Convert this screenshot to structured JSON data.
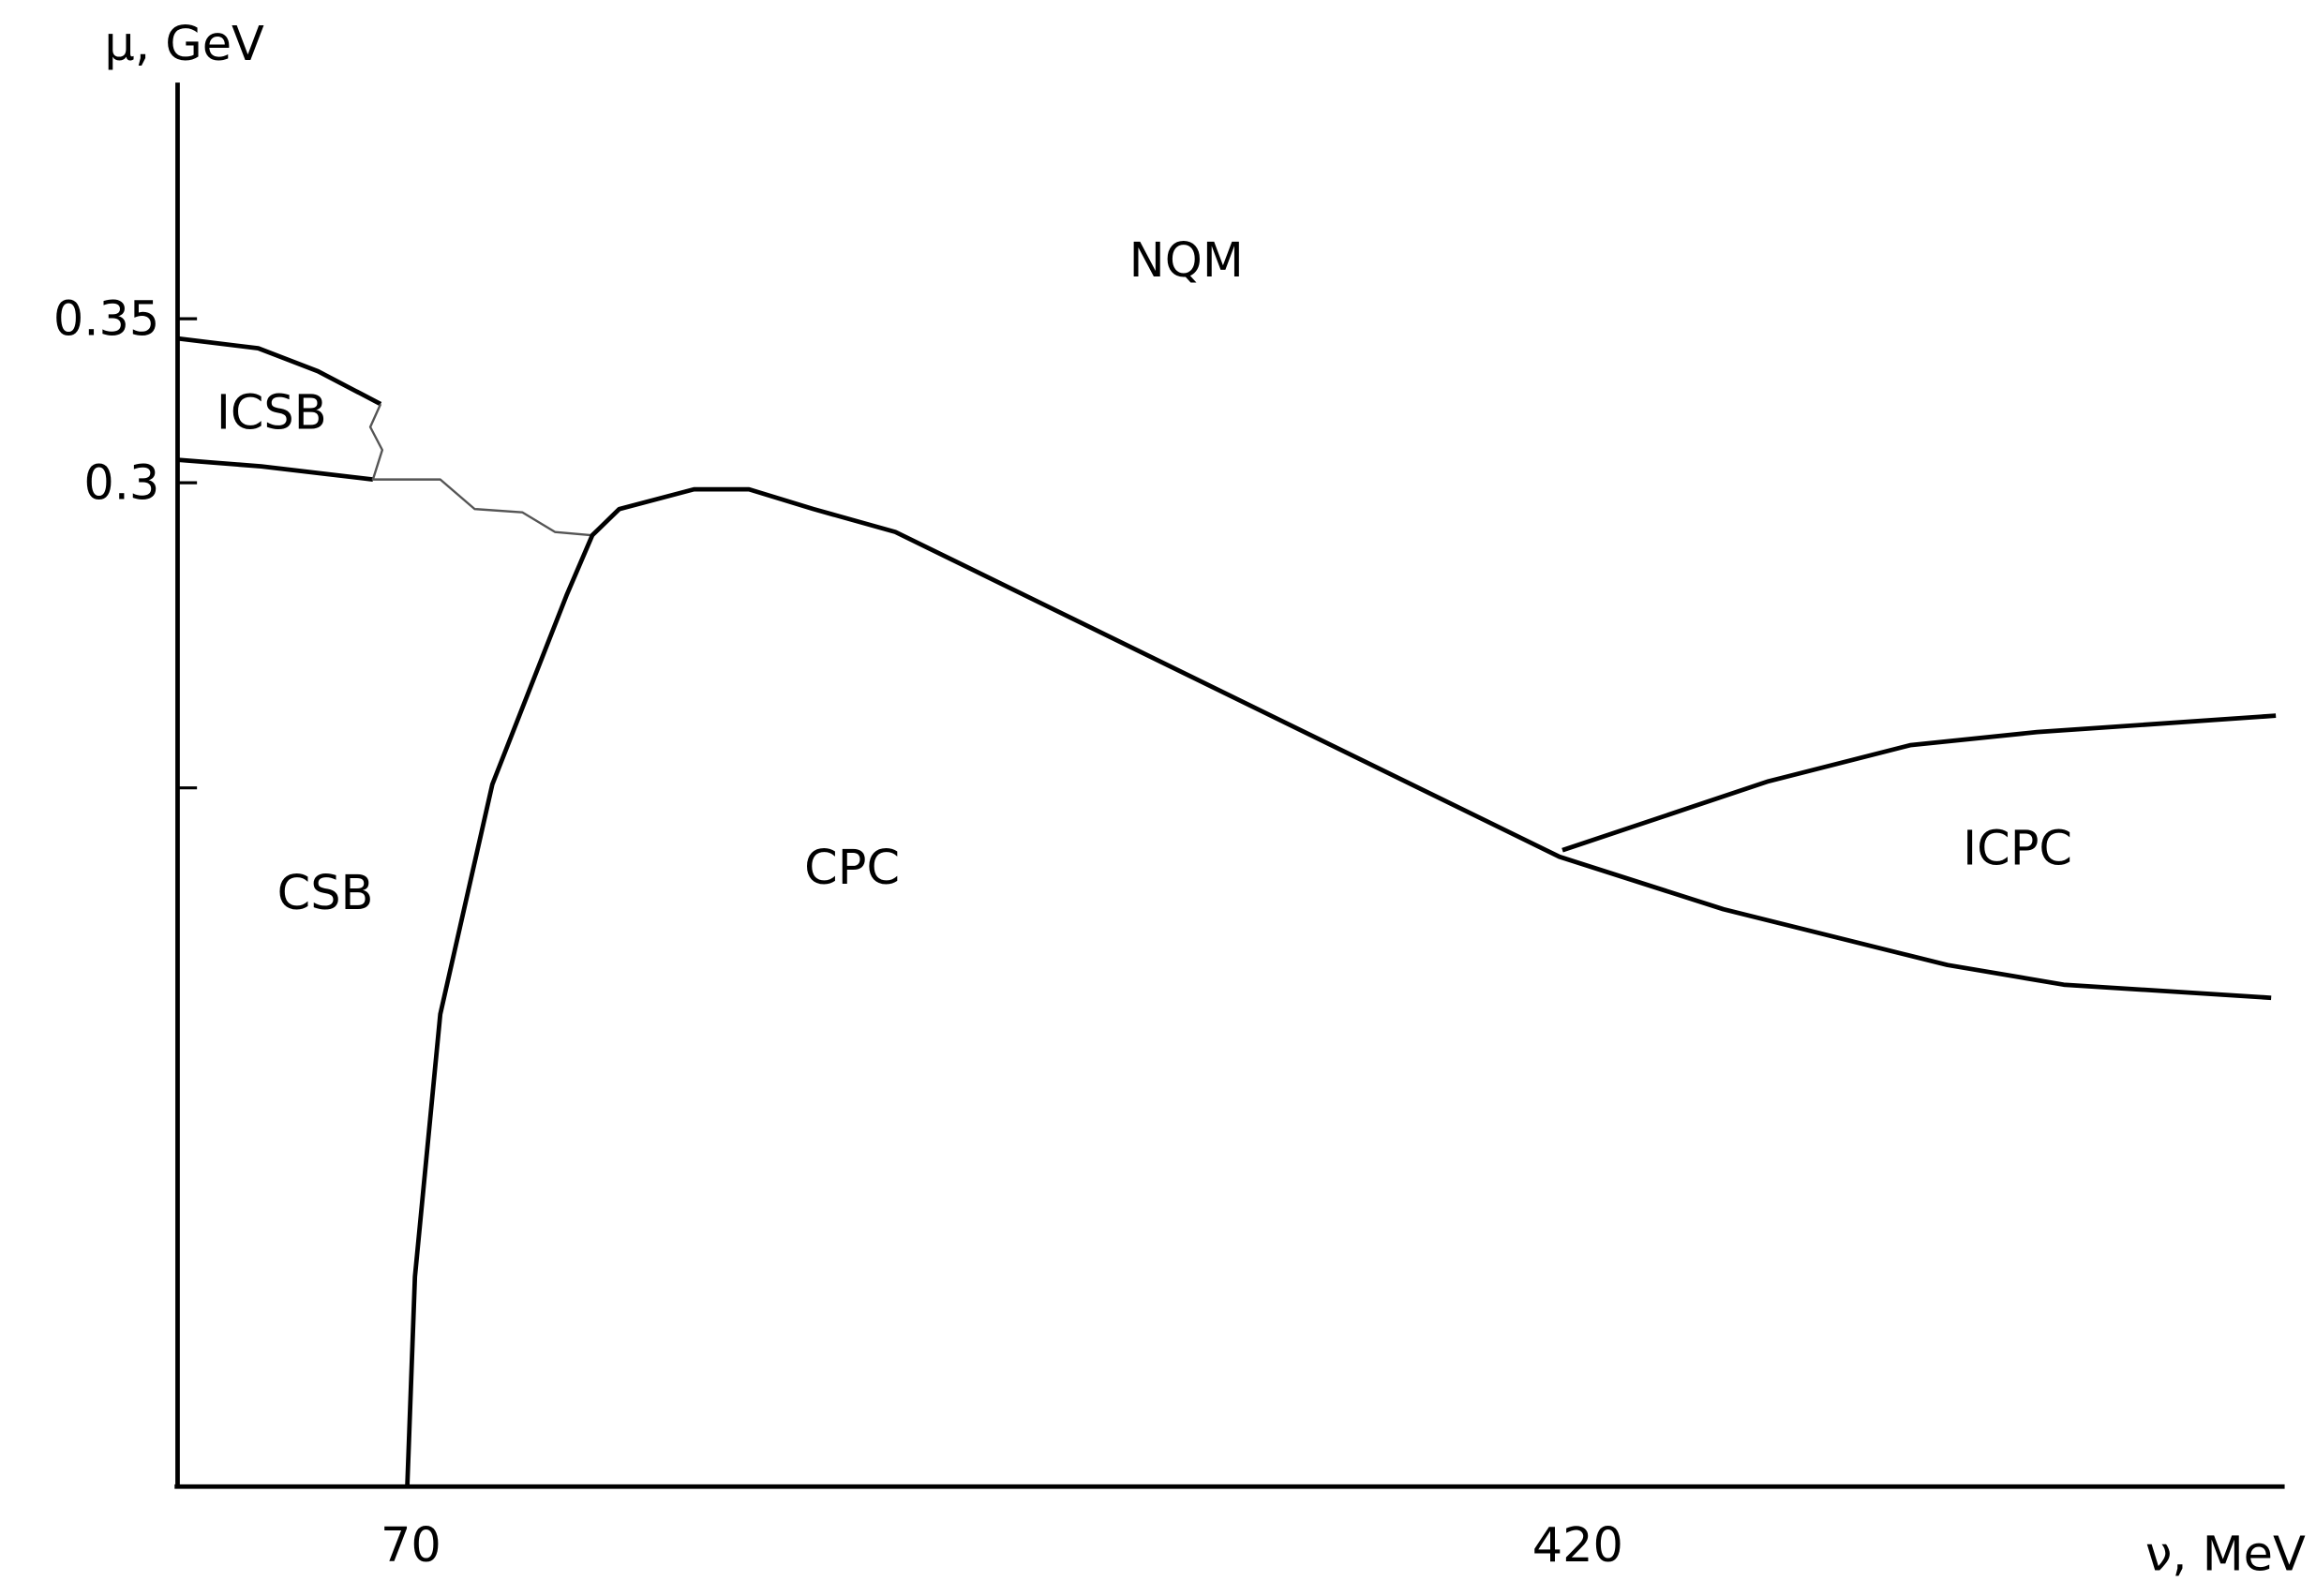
{
  "chart_data": {
    "type": "line",
    "y_label": "μ, GeV",
    "x_label": "ν, MeV",
    "xlim": [
      0,
      631.6
    ],
    "ylim": [
      -0.006,
      0.422
    ],
    "xticks": [
      70,
      420
    ],
    "yticks": [
      0.35,
      0.3,
      {
        "value": 0.207,
        "label": null
      }
    ],
    "grid": false,
    "annotations": [
      "NQM",
      "ICSB",
      "CSB",
      "CPC",
      "ICPC"
    ],
    "series": [
      {
        "color": "#000000",
        "x": [
          0,
          24.2,
          42.1,
          60.9
        ],
        "values": [
          0.344,
          0.341,
          0.334,
          0.324
        ]
      },
      {
        "color": "#000000",
        "x": [
          0,
          25.1,
          58.6
        ],
        "values": [
          0.307,
          0.305,
          0.301
        ]
      },
      {
        "color": "#555555",
        "x": [
          60.9,
          57.8,
          61.4,
          58.6,
          78.8,
          89.1,
          103.4,
          113.2,
          124.4
        ],
        "values": [
          0.324,
          0.317,
          0.31,
          0.301,
          0.301,
          0.292,
          0.291,
          0.285,
          0.284
        ]
      },
      {
        "color": "#000000",
        "x": [
          68.9,
          71.2,
          78.8,
          94.4,
          116.8,
          124.4,
          132.5,
          154.9,
          171.4,
          190.7,
          215.3,
          414.5,
          463.7,
          530.9,
          565.8,
          628.0
        ],
        "values": [
          -0.006,
          0.058,
          0.138,
          0.208,
          0.266,
          0.284,
          0.292,
          0.298,
          0.298,
          0.292,
          0.285,
          0.186,
          0.17,
          0.153,
          0.147,
          0.143
        ]
      },
      {
        "color": "#000000",
        "x": [
          415.4,
          477.2,
          519.7,
          557.8,
          629.4
        ],
        "values": [
          0.188,
          0.209,
          0.22,
          0.224,
          0.229
        ]
      }
    ]
  }
}
